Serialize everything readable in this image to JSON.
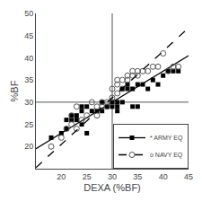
{
  "chart_data": {
    "type": "scatter",
    "xlabel": "DEXA (%BF)",
    "ylabel": "%BF",
    "xlim": [
      15,
      45
    ],
    "ylim": [
      15,
      50
    ],
    "xticks": [
      20,
      25,
      30,
      35,
      40,
      45
    ],
    "yticks": [
      20,
      25,
      30,
      35,
      40,
      45,
      50
    ],
    "grid": false,
    "legend": "lower right",
    "crosshair": {
      "x": 30,
      "y": 30,
      "color": "#555555"
    },
    "series": [
      {
        "name": "* ARMY EQ",
        "type": "scatter",
        "marker": "square",
        "color": "#000000",
        "points": [
          [
            18,
            22
          ],
          [
            20,
            23
          ],
          [
            21,
            24
          ],
          [
            21,
            26
          ],
          [
            22,
            26
          ],
          [
            22,
            27
          ],
          [
            23,
            26
          ],
          [
            23,
            27
          ],
          [
            24,
            25
          ],
          [
            24,
            28
          ],
          [
            24,
            29
          ],
          [
            25,
            23
          ],
          [
            25,
            29
          ],
          [
            26,
            28
          ],
          [
            27,
            28
          ],
          [
            28,
            28
          ],
          [
            28,
            30
          ],
          [
            29,
            29
          ],
          [
            30,
            29
          ],
          [
            30,
            30
          ],
          [
            31,
            28
          ],
          [
            31,
            29
          ],
          [
            31,
            30
          ],
          [
            32,
            30
          ],
          [
            32,
            33
          ],
          [
            33,
            33
          ],
          [
            33,
            34
          ],
          [
            34,
            33
          ],
          [
            35,
            34
          ],
          [
            36,
            34
          ],
          [
            37,
            33
          ],
          [
            38,
            35
          ],
          [
            39,
            34
          ],
          [
            40,
            36
          ],
          [
            41,
            37
          ],
          [
            42,
            37
          ],
          [
            43,
            37
          ],
          [
            34,
            29
          ],
          [
            35,
            29
          ]
        ],
        "fit": {
          "type": "line",
          "color": "#000000",
          "line_style": "solid",
          "x": [
            15,
            45
          ],
          "y": [
            19.5,
            40.5
          ]
        }
      },
      {
        "name": "o NAVY EQ",
        "type": "scatter",
        "marker": "circle-open",
        "color": "#555555",
        "points": [
          [
            18,
            20
          ],
          [
            20,
            22
          ],
          [
            21,
            24
          ],
          [
            22,
            25
          ],
          [
            22,
            27
          ],
          [
            23,
            24
          ],
          [
            23,
            29
          ],
          [
            24,
            26
          ],
          [
            25,
            27
          ],
          [
            26,
            30
          ],
          [
            27,
            27
          ],
          [
            27,
            29
          ],
          [
            28,
            29
          ],
          [
            28,
            30
          ],
          [
            29,
            29
          ],
          [
            29,
            30
          ],
          [
            30,
            30
          ],
          [
            30,
            31
          ],
          [
            30,
            33
          ],
          [
            31,
            32
          ],
          [
            31,
            34
          ],
          [
            31,
            35
          ],
          [
            32,
            33
          ],
          [
            32,
            35
          ],
          [
            33,
            35
          ],
          [
            33,
            36
          ],
          [
            34,
            36
          ],
          [
            34,
            37
          ],
          [
            35,
            36
          ],
          [
            35,
            37
          ],
          [
            36,
            37
          ],
          [
            37,
            37
          ],
          [
            38,
            38
          ],
          [
            39,
            38
          ],
          [
            40,
            41
          ],
          [
            41,
            37
          ],
          [
            42,
            38
          ],
          [
            43,
            38
          ]
        ],
        "fit": {
          "type": "line",
          "color": "#000000",
          "line_style": "dashed",
          "x": [
            15,
            45
          ],
          "y": [
            15.25,
            46.75
          ]
        }
      }
    ]
  }
}
